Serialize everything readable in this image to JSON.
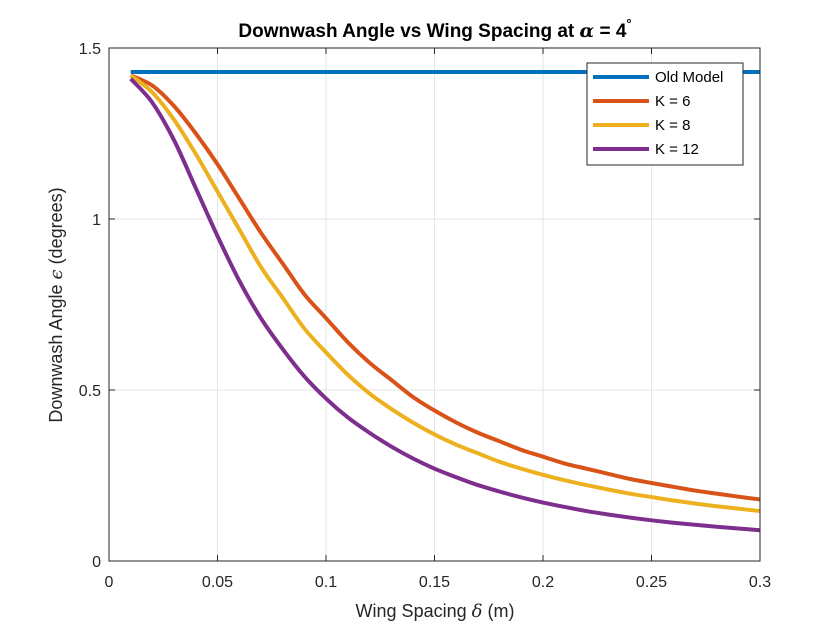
{
  "chart_data": {
    "type": "line",
    "title_main": "Downwash Angle vs Wing Spacing at ",
    "title_symbol": "α",
    "title_suffix": " = 4",
    "title_degree": "°",
    "xlabel_main": "Wing Spacing ",
    "xlabel_symbol": "δ",
    "xlabel_suffix": " (m)",
    "ylabel_main": "Downwash Angle ",
    "ylabel_symbol": "ϵ",
    "ylabel_suffix": " (degrees)",
    "xlim": [
      0,
      0.3
    ],
    "ylim": [
      0,
      1.5
    ],
    "xticks": [
      0,
      0.05,
      0.1,
      0.15,
      0.2,
      0.25,
      0.3
    ],
    "xtick_labels": [
      "0",
      "0.05",
      "0.1",
      "0.15",
      "0.2",
      "0.25",
      "0.3"
    ],
    "yticks": [
      0,
      0.5,
      1,
      1.5
    ],
    "ytick_labels": [
      "0",
      "0.5",
      "1",
      "1.5"
    ],
    "grid": true,
    "legend_position": "top-right",
    "x": [
      0.01,
      0.02,
      0.03,
      0.04,
      0.05,
      0.06,
      0.07,
      0.08,
      0.09,
      0.1,
      0.11,
      0.12,
      0.13,
      0.14,
      0.15,
      0.16,
      0.17,
      0.18,
      0.19,
      0.2,
      0.21,
      0.22,
      0.23,
      0.24,
      0.25,
      0.26,
      0.27,
      0.28,
      0.29,
      0.3
    ],
    "series": [
      {
        "name": "Old Model",
        "color": "#0072BD",
        "x": [
          0.01,
          0.3
        ],
        "values": [
          1.43,
          1.43
        ]
      },
      {
        "name": "K = 6",
        "color": "#D95319",
        "values": [
          1.42,
          1.39,
          1.33,
          1.25,
          1.16,
          1.06,
          0.96,
          0.87,
          0.78,
          0.71,
          0.64,
          0.58,
          0.53,
          0.48,
          0.44,
          0.405,
          0.375,
          0.35,
          0.325,
          0.305,
          0.285,
          0.27,
          0.255,
          0.24,
          0.228,
          0.217,
          0.206,
          0.197,
          0.188,
          0.18
        ]
      },
      {
        "name": "K = 8",
        "color": "#EDB120",
        "values": [
          1.42,
          1.37,
          1.29,
          1.19,
          1.08,
          0.97,
          0.86,
          0.77,
          0.68,
          0.61,
          0.545,
          0.49,
          0.445,
          0.405,
          0.37,
          0.34,
          0.315,
          0.29,
          0.27,
          0.252,
          0.236,
          0.222,
          0.209,
          0.197,
          0.187,
          0.177,
          0.168,
          0.16,
          0.153,
          0.146
        ]
      },
      {
        "name": "K = 12",
        "color": "#7E2F8E",
        "values": [
          1.41,
          1.34,
          1.23,
          1.09,
          0.95,
          0.82,
          0.71,
          0.62,
          0.54,
          0.475,
          0.42,
          0.375,
          0.335,
          0.3,
          0.27,
          0.245,
          0.222,
          0.203,
          0.186,
          0.171,
          0.158,
          0.146,
          0.136,
          0.127,
          0.119,
          0.112,
          0.106,
          0.1,
          0.095,
          0.09
        ]
      }
    ]
  }
}
